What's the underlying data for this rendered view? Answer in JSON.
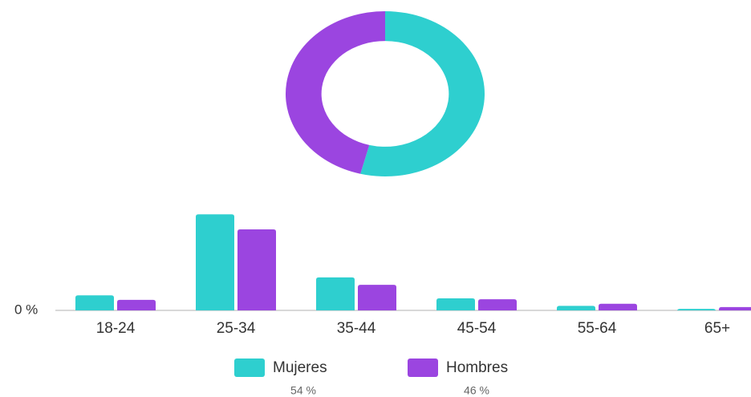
{
  "chart_data": [
    {
      "type": "donut",
      "values": [
        54,
        46
      ],
      "value_labels": [
        "54 %",
        "46 %"
      ],
      "colors": [
        "#2ecfcf",
        "#9b45e0"
      ]
    },
    {
      "type": "bar",
      "categories": [
        "18-24",
        "25-34",
        "35-44",
        "45-54",
        "55-64",
        "65+"
      ],
      "series": [
        {
          "name": "Mujeres",
          "color": "#2ecfcf",
          "values": [
            5,
            32,
            11,
            4,
            1.5,
            0.5
          ]
        },
        {
          "name": "Hombres",
          "color": "#9b45e0",
          "values": [
            3.5,
            27,
            8.5,
            3.7,
            2.2,
            1.1
          ]
        }
      ],
      "ylim": [
        0,
        35
      ],
      "yticks": [
        {
          "value": 0,
          "label": "0 %"
        }
      ],
      "legend": "bottom"
    }
  ]
}
